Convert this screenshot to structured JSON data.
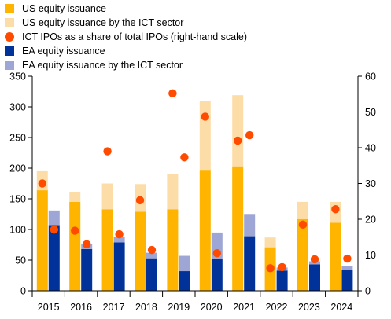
{
  "chart_data": {
    "type": "bar",
    "categories": [
      "2015",
      "2016",
      "2017",
      "2018",
      "2019",
      "2020",
      "2021",
      "2022",
      "2023",
      "2024"
    ],
    "left_axis": {
      "ylim": [
        0,
        350
      ],
      "ticks": [
        0,
        50,
        100,
        150,
        200,
        250,
        300,
        350
      ]
    },
    "right_axis": {
      "ylim": [
        0,
        60
      ],
      "ticks": [
        0,
        10,
        20,
        30,
        40,
        50,
        60
      ]
    },
    "series": [
      {
        "name": "US equity issuance",
        "type": "bar",
        "group": "US",
        "layer": "base",
        "axis": "left",
        "color": "#FFB400",
        "values": [
          164,
          145,
          133,
          129,
          133,
          196,
          203,
          71,
          117,
          111
        ]
      },
      {
        "name": "US equity issuance by the ICT sector",
        "type": "bar",
        "group": "US",
        "layer": "top",
        "axis": "left",
        "color": "#FDDDA7",
        "values": [
          31,
          16,
          42,
          45,
          57,
          113,
          116,
          16,
          28,
          34
        ]
      },
      {
        "name": "ICT IPOs as a share of total IPOs (right-hand scale)",
        "type": "scatter",
        "axis": "right",
        "color": "#FF4B00",
        "x": [
          "2015",
          "2015.5",
          "2016",
          "2016.5",
          "2017",
          "2017.5",
          "2018",
          "2018.5",
          "2019",
          "2019.5",
          "2020",
          "2020.5",
          "2021",
          "2021.5",
          "2022",
          "2022.5",
          "2023",
          "2023.5",
          "2024",
          "2024.5"
        ],
        "values": [
          30.0,
          17.1,
          16.8,
          13.0,
          39.0,
          15.8,
          25.3,
          11.4,
          55.2,
          37.3,
          48.7,
          10.5,
          42.0,
          43.5,
          6.3,
          6.6,
          18.5,
          8.8,
          22.8,
          9.0
        ]
      },
      {
        "name": "EA equity issuance",
        "type": "bar",
        "group": "EA",
        "layer": "base",
        "axis": "left",
        "color": "#003299",
        "values": [
          107,
          68,
          79,
          53,
          32,
          52,
          89,
          33,
          43,
          34
        ]
      },
      {
        "name": "EA equity issuance by the ICT sector",
        "type": "bar",
        "group": "EA",
        "layer": "top",
        "axis": "left",
        "color": "#9DA6D4",
        "values": [
          24,
          9,
          9,
          9,
          25,
          43,
          35,
          5,
          5,
          6
        ]
      }
    ],
    "legend_position": "top-left",
    "grid": false
  }
}
